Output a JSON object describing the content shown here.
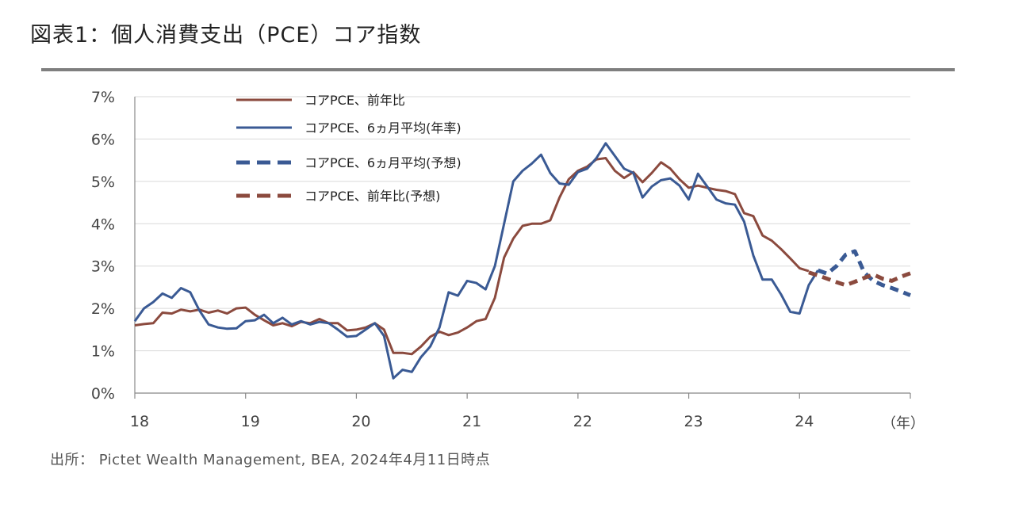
{
  "header": {
    "title": "図表1：個人消費支出（PCE）コア指数"
  },
  "footer": {
    "source": "出所： Pictet Wealth Management, BEA, 2024年4月11日時点"
  },
  "colors": {
    "brown": "#8b4a3e",
    "blue": "#3a5a94",
    "grid": "#d9d9d9",
    "axis": "#888888",
    "rule": "#7f7f7f"
  },
  "chart_data": {
    "type": "line",
    "x_unit": "（年）",
    "ylim": [
      0,
      7
    ],
    "xlim": [
      18,
      25
    ],
    "y_ticks": [
      "0%",
      "1%",
      "2%",
      "3%",
      "4%",
      "5%",
      "6%",
      "7%"
    ],
    "x_ticks": [
      "18",
      "19",
      "20",
      "21",
      "22",
      "23",
      "24"
    ],
    "grid": "horizontal",
    "legend_position": "top-center",
    "series": [
      {
        "name": "コアPCE、前年比",
        "color": "#8b4a3e",
        "style": "solid",
        "start": 18,
        "step": 0.08333,
        "values": [
          1.6,
          1.63,
          1.65,
          1.9,
          1.88,
          1.97,
          1.93,
          1.97,
          1.9,
          1.95,
          1.88,
          2.0,
          2.02,
          1.85,
          1.72,
          1.6,
          1.65,
          1.58,
          1.68,
          1.65,
          1.75,
          1.65,
          1.65,
          1.48,
          1.5,
          1.55,
          1.65,
          1.5,
          0.95,
          0.95,
          0.92,
          1.1,
          1.33,
          1.45,
          1.37,
          1.43,
          1.55,
          1.7,
          1.75,
          2.25,
          3.2,
          3.65,
          3.95,
          4.0,
          4.0,
          4.08,
          4.62,
          5.05,
          5.25,
          5.35,
          5.52,
          5.55,
          5.25,
          5.08,
          5.22,
          4.98,
          5.2,
          5.45,
          5.3,
          5.05,
          4.85,
          4.9,
          4.85,
          4.8,
          4.77,
          4.7,
          4.25,
          4.18,
          3.72,
          3.6,
          3.4,
          3.18,
          2.95,
          2.88
        ]
      },
      {
        "name": "コアPCE、6ヵ月平均(年率)",
        "color": "#3a5a94",
        "style": "solid",
        "start": 18,
        "step": 0.08333,
        "values": [
          1.7,
          2.0,
          2.15,
          2.35,
          2.25,
          2.48,
          2.38,
          1.95,
          1.62,
          1.55,
          1.52,
          1.53,
          1.7,
          1.72,
          1.85,
          1.65,
          1.78,
          1.62,
          1.7,
          1.62,
          1.68,
          1.65,
          1.5,
          1.33,
          1.35,
          1.5,
          1.65,
          1.35,
          0.35,
          0.55,
          0.5,
          0.85,
          1.1,
          1.55,
          2.38,
          2.3,
          2.65,
          2.6,
          2.45,
          3.0,
          4.0,
          5.0,
          5.25,
          5.42,
          5.63,
          5.2,
          4.95,
          4.92,
          5.22,
          5.3,
          5.55,
          5.9,
          5.6,
          5.3,
          5.2,
          4.62,
          4.88,
          5.03,
          5.07,
          4.9,
          4.57,
          5.18,
          4.88,
          4.57,
          4.48,
          4.45,
          4.05,
          3.25,
          2.68,
          2.68,
          2.33,
          1.92,
          1.88,
          2.55,
          2.9
        ]
      },
      {
        "name": "コアPCE、6ヵ月平均(予想)",
        "color": "#3a5a94",
        "style": "dashed",
        "start": 24.1667,
        "step": 0.08333,
        "values": [
          2.9,
          2.82,
          3.0,
          3.27,
          3.35,
          2.85,
          2.65,
          2.55,
          2.48,
          2.4,
          2.31
        ]
      },
      {
        "name": "コアPCE、前年比(予想)",
        "color": "#8b4a3e",
        "style": "dashed",
        "start": 24.0833,
        "step": 0.08333,
        "values": [
          2.85,
          2.78,
          2.7,
          2.62,
          2.55,
          2.63,
          2.72,
          2.8,
          2.7,
          2.65,
          2.75,
          2.83
        ]
      }
    ]
  }
}
